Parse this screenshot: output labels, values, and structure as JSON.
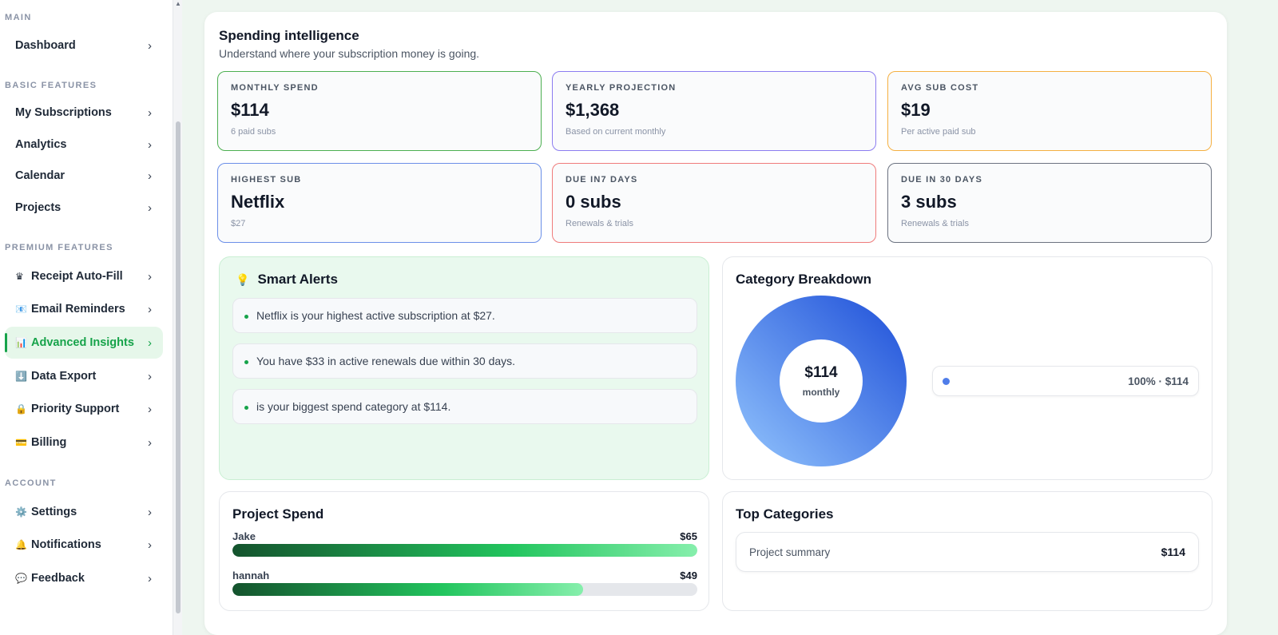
{
  "sidebar": {
    "sections": {
      "main": "MAIN",
      "basic": "BASIC FEATURES",
      "premium": "PREMIUM FEATURES",
      "account": "ACCOUNT"
    },
    "items": {
      "dashboard": {
        "label": "Dashboard",
        "icon": ""
      },
      "subscriptions": {
        "label": "My Subscriptions",
        "icon": ""
      },
      "analytics": {
        "label": "Analytics",
        "icon": ""
      },
      "calendar": {
        "label": "Calendar",
        "icon": ""
      },
      "projects": {
        "label": "Projects",
        "icon": ""
      },
      "receipt": {
        "label": "Receipt Auto-Fill",
        "icon": "♛"
      },
      "email": {
        "label": "Email Reminders",
        "icon": "📧"
      },
      "insights": {
        "label": "Advanced Insights",
        "icon": "📊"
      },
      "export": {
        "label": "Data Export",
        "icon": "⬇️"
      },
      "support": {
        "label": "Priority Support",
        "icon": "🔒"
      },
      "billing": {
        "label": "Billing",
        "icon": "💳"
      },
      "settings": {
        "label": "Settings",
        "icon": "⚙️"
      },
      "notifications": {
        "label": "Notifications",
        "icon": "🔔"
      },
      "feedback": {
        "label": "Feedback",
        "icon": "💬"
      }
    },
    "chevron": "›"
  },
  "header": {
    "title": "Spending intelligence",
    "subtitle": "Understand where your subscription money is going."
  },
  "stats": {
    "monthly": {
      "label": "MONTHLY SPEND",
      "value": "$114",
      "note": "6 paid subs",
      "color": "#4caf50"
    },
    "yearly": {
      "label": "YEARLY PROJECTION",
      "value": "$1,368",
      "note": "Based on current monthly",
      "color": "#8b7cf0"
    },
    "avg": {
      "label": "AVG SUB COST",
      "value": "$19",
      "note": "Per active paid sub",
      "color": "#f5b041"
    },
    "highest": {
      "label": "HIGHEST SUB",
      "value": "Netflix",
      "note": "$27",
      "color": "#6b8fe8"
    },
    "due7": {
      "label": "DUE IN7 DAYS",
      "value": "0 subs",
      "note": "Renewals & trials",
      "color": "#ef7b7b"
    },
    "due30": {
      "label": "DUE IN 30 DAYS",
      "value": "3 subs",
      "note": "Renewals & trials",
      "color": "#6b7280"
    }
  },
  "alerts": {
    "title": "Smart Alerts",
    "icon": "bulb-icon",
    "items": [
      "Netflix is your highest active subscription at $27.",
      "You have $33 in active renewals due within 30 days.",
      " is your biggest spend category at $114."
    ]
  },
  "category": {
    "title": "Category Breakdown",
    "center_amount": "$114",
    "center_label": "monthly",
    "legend_text": "100% · $114",
    "colors": {
      "start": "#1d4ed8",
      "end": "#93c5fd"
    }
  },
  "project_spend": {
    "title": "Project Spend",
    "rows": [
      {
        "name": "Jake",
        "amount": "$65",
        "value": 65
      },
      {
        "name": "hannah",
        "amount": "$49",
        "value": 49
      }
    ],
    "max": 65
  },
  "top_categories": {
    "title": "Top Categories",
    "rows": [
      {
        "name": "Project summary",
        "amount": "$114"
      }
    ]
  },
  "accent": "#16a34a"
}
